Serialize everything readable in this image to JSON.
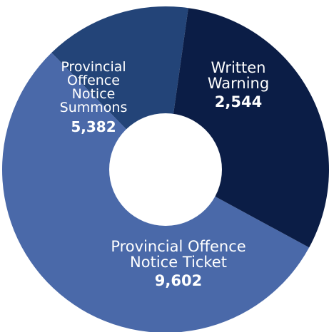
{
  "chart_data": {
    "type": "pie",
    "donut": true,
    "title": "",
    "slices": [
      {
        "label_lines": [
          "Written",
          "Warning"
        ],
        "value": 2544,
        "value_label": "2,544",
        "color": "#234478"
      },
      {
        "label_lines": [
          "Provincial Offence",
          "Notice Ticket"
        ],
        "value": 9602,
        "value_label": "9,602",
        "color": "#4a69a9"
      },
      {
        "label_lines": [
          "Provincial",
          "Offence",
          "Notice",
          "Summons"
        ],
        "value": 5382,
        "value_label": "5,382",
        "color": "#0b1d46"
      }
    ],
    "legend": "none",
    "label_color": "#ffffff"
  }
}
